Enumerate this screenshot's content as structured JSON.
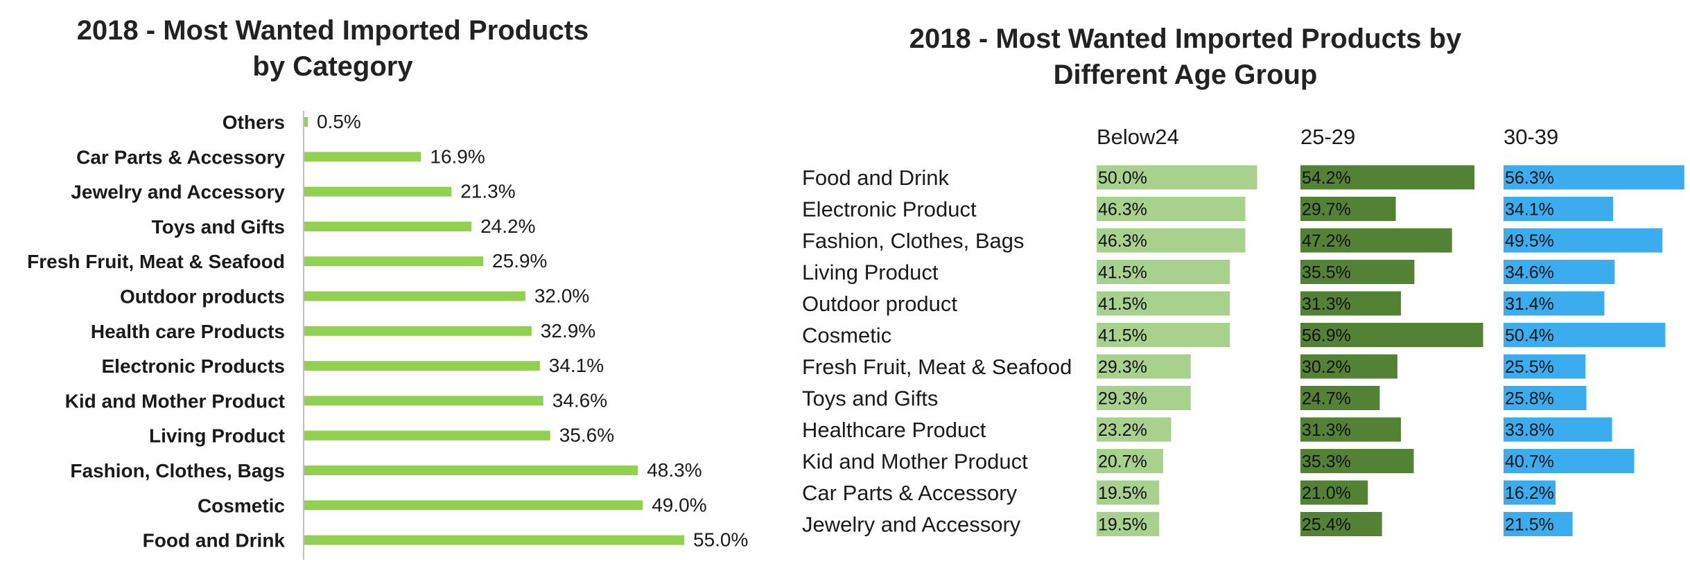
{
  "chart_data": [
    {
      "type": "bar",
      "orientation": "horizontal",
      "title": "2018 - Most Wanted Imported Products by Category",
      "title_lines": [
        "2018 - Most Wanted Imported Products",
        "by Category"
      ],
      "categories": [
        "Others",
        "Car Parts & Accessory",
        "Jewelry and Accessory",
        "Toys and Gifts",
        "Fresh Fruit, Meat & Seafood",
        "Outdoor products",
        "Health care Products",
        "Electronic Products",
        "Kid and Mother Product",
        "Living Product",
        "Fashion, Clothes, Bags",
        "Cosmetic",
        "Food and Drink"
      ],
      "values": [
        0.5,
        16.9,
        21.3,
        24.2,
        25.9,
        32.0,
        32.9,
        34.1,
        34.6,
        35.6,
        48.3,
        49.0,
        55.0
      ],
      "labels": [
        "0.5%",
        "16.9%",
        "21.3%",
        "24.2%",
        "25.9%",
        "32.0%",
        "32.9%",
        "34.1%",
        "34.6%",
        "35.6%",
        "48.3%",
        "49.0%",
        "55.0%"
      ],
      "xlim": [
        0,
        55
      ],
      "grid": false,
      "colors": {
        "bar": "#92d050",
        "axis": "#bfbfbf"
      }
    },
    {
      "type": "bar",
      "orientation": "horizontal",
      "layout": "small-multiples",
      "title": "2018 - Most Wanted Imported Products by Different Age Group",
      "title_lines": [
        "2018 - Most Wanted Imported Products by",
        "Different Age Group"
      ],
      "categories": [
        "Food and Drink",
        "Electronic Product",
        "Fashion, Clothes, Bags",
        "Living Product",
        "Outdoor product",
        "Cosmetic",
        "Fresh Fruit, Meat & Seafood",
        "Toys and Gifts",
        "Healthcare Product",
        "Kid and Mother Product",
        "Car Parts & Accessory",
        "Jewelry and Accessory"
      ],
      "series": [
        {
          "name": "Below24",
          "color": "#a9d18e",
          "values": [
            50.0,
            46.3,
            46.3,
            41.5,
            41.5,
            41.5,
            29.3,
            29.3,
            23.2,
            20.7,
            19.5,
            19.5
          ],
          "labels": [
            "50.0%",
            "46.3%",
            "46.3%",
            "41.5%",
            "41.5%",
            "41.5%",
            "29.3%",
            "29.3%",
            "23.2%",
            "20.7%",
            "19.5%",
            "19.5%"
          ]
        },
        {
          "name": "25-29",
          "color": "#548235",
          "values": [
            54.2,
            29.7,
            47.2,
            35.5,
            31.3,
            56.9,
            30.2,
            24.7,
            31.3,
            35.3,
            21.0,
            25.4
          ],
          "labels": [
            "54.2%",
            "29.7%",
            "47.2%",
            "35.5%",
            "31.3%",
            "56.9%",
            "30.2%",
            "24.7%",
            "31.3%",
            "35.3%",
            "21.0%",
            "25.4%"
          ]
        },
        {
          "name": "30-39",
          "color": "#3badee",
          "values": [
            56.3,
            34.1,
            49.5,
            34.6,
            31.4,
            50.4,
            25.5,
            25.8,
            33.8,
            40.7,
            16.2,
            21.5
          ],
          "labels": [
            "56.3%",
            "34.1%",
            "49.5%",
            "34.6%",
            "31.4%",
            "50.4%",
            "25.5%",
            "25.8%",
            "33.8%",
            "40.7%",
            "16.2%",
            "21.5%"
          ]
        }
      ],
      "xlim": [
        0,
        57
      ],
      "grid": false
    }
  ]
}
